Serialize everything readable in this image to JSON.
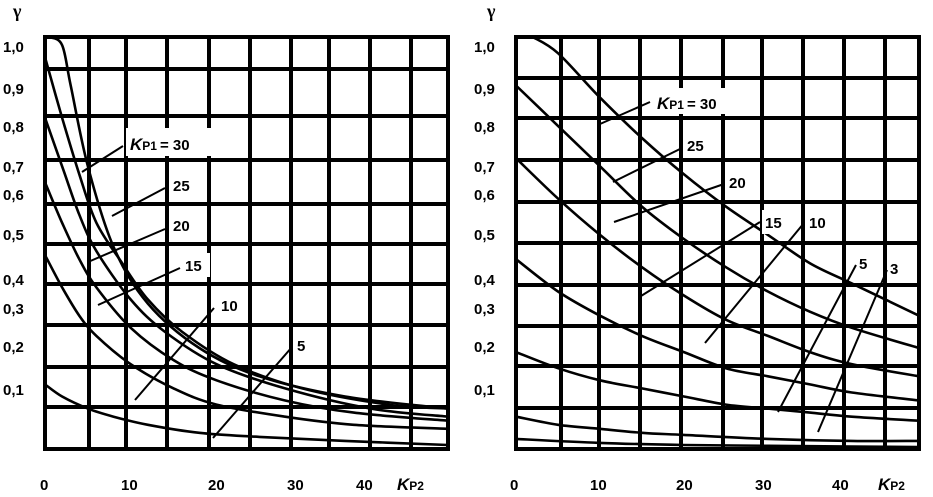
{
  "chart_data": [
    {
      "type": "line",
      "ylabel": "γ",
      "xlabel_main": "K",
      "xlabel_sub": "P2",
      "x_ticks": [
        "0",
        "10",
        "20",
        "30",
        "40"
      ],
      "y_ticks": [
        "0,1",
        "0,2",
        "0,3",
        "0,4",
        "0,5",
        "0,6",
        "0,7",
        "0,8",
        "0,9",
        "1,0"
      ],
      "xlim": [
        0,
        47
      ],
      "ylim": [
        0,
        1.02
      ],
      "grid": true,
      "series": [
        {
          "name": "30",
          "x": [
            0.5,
            2,
            3,
            5,
            8,
            12,
            18,
            25,
            35,
            47
          ],
          "values": [
            1.02,
            1.0,
            0.9,
            0.7,
            0.5,
            0.36,
            0.25,
            0.18,
            0.13,
            0.1
          ]
        },
        {
          "name": "25",
          "x": [
            0,
            2,
            4,
            6,
            9,
            12,
            16,
            22,
            30,
            40,
            47
          ],
          "values": [
            0.97,
            0.82,
            0.68,
            0.56,
            0.46,
            0.37,
            0.29,
            0.21,
            0.15,
            0.11,
            0.1
          ]
        },
        {
          "name": "20",
          "x": [
            0,
            2,
            4,
            6,
            10,
            14,
            20,
            28,
            38,
            47
          ],
          "values": [
            0.82,
            0.7,
            0.58,
            0.49,
            0.37,
            0.29,
            0.21,
            0.15,
            0.1,
            0.08
          ]
        },
        {
          "name": "15",
          "x": [
            0,
            2,
            4,
            6,
            10,
            15,
            20,
            28,
            36,
            47
          ],
          "values": [
            0.66,
            0.56,
            0.47,
            0.4,
            0.3,
            0.22,
            0.17,
            0.12,
            0.09,
            0.07
          ]
        },
        {
          "name": "10",
          "x": [
            0,
            2,
            4,
            6,
            10,
            15,
            20,
            28,
            36,
            47
          ],
          "values": [
            0.48,
            0.4,
            0.33,
            0.28,
            0.21,
            0.15,
            0.11,
            0.08,
            0.06,
            0.05
          ]
        },
        {
          "name": "5",
          "x": [
            0,
            2,
            5,
            8,
            12,
            18,
            25,
            35,
            47
          ],
          "values": [
            0.16,
            0.13,
            0.1,
            0.08,
            0.06,
            0.04,
            0.03,
            0.02,
            0.01
          ]
        }
      ],
      "label_texts": {
        "k": "K",
        "k_sub": "P1",
        "eq": "= 30",
        "l25": "25",
        "l20": "20",
        "l15": "15",
        "l10": "10",
        "l5": "5"
      }
    },
    {
      "type": "line",
      "ylabel": "γ",
      "xlabel_main": "K",
      "xlabel_sub": "P2",
      "x_ticks": [
        "0",
        "10",
        "20",
        "30",
        "40"
      ],
      "y_ticks": [
        "0,1",
        "0,2",
        "0,3",
        "0,4",
        "0,5",
        "0,6",
        "0,7",
        "0,8",
        "0,9",
        "1,0"
      ],
      "xlim": [
        0,
        48
      ],
      "ylim": [
        0,
        1.02
      ],
      "grid": true,
      "series": [
        {
          "name": "30",
          "x": [
            2,
            5,
            10,
            15,
            20,
            25,
            30,
            35,
            40,
            48
          ],
          "values": [
            1.02,
            0.98,
            0.87,
            0.77,
            0.68,
            0.6,
            0.53,
            0.46,
            0.41,
            0.33
          ]
        },
        {
          "name": "25",
          "x": [
            0,
            5,
            10,
            15,
            20,
            25,
            30,
            35,
            40,
            48
          ],
          "values": [
            0.9,
            0.8,
            0.7,
            0.6,
            0.52,
            0.45,
            0.39,
            0.34,
            0.3,
            0.25
          ]
        },
        {
          "name": "20",
          "x": [
            0,
            5,
            10,
            15,
            20,
            25,
            30,
            35,
            40,
            48
          ],
          "values": [
            0.72,
            0.62,
            0.53,
            0.45,
            0.38,
            0.32,
            0.28,
            0.24,
            0.21,
            0.18
          ]
        },
        {
          "name": "15",
          "x": [
            0,
            5,
            10,
            15,
            20,
            25,
            30,
            35,
            40,
            48
          ],
          "values": [
            0.47,
            0.39,
            0.33,
            0.28,
            0.24,
            0.2,
            0.18,
            0.16,
            0.14,
            0.12
          ]
        },
        {
          "name": "10",
          "x": [
            0,
            5,
            10,
            15,
            20,
            25,
            30,
            35,
            40,
            48
          ],
          "values": [
            0.24,
            0.2,
            0.17,
            0.15,
            0.13,
            0.11,
            0.1,
            0.09,
            0.08,
            0.07
          ]
        },
        {
          "name": "5",
          "x": [
            0,
            5,
            10,
            15,
            20,
            30,
            40,
            48
          ],
          "values": [
            0.08,
            0.06,
            0.05,
            0.04,
            0.035,
            0.025,
            0.02,
            0.02
          ]
        },
        {
          "name": "3",
          "x": [
            0,
            10,
            20,
            30,
            40,
            48
          ],
          "values": [
            0.025,
            0.015,
            0.01,
            0.008,
            0.006,
            0.005
          ]
        }
      ],
      "label_texts": {
        "k": "K",
        "k_sub": "P1",
        "eq": "= 30",
        "l25": "25",
        "l20": "20",
        "l15": "15",
        "l10": "10",
        "l5": "5",
        "l3": "3"
      }
    }
  ]
}
